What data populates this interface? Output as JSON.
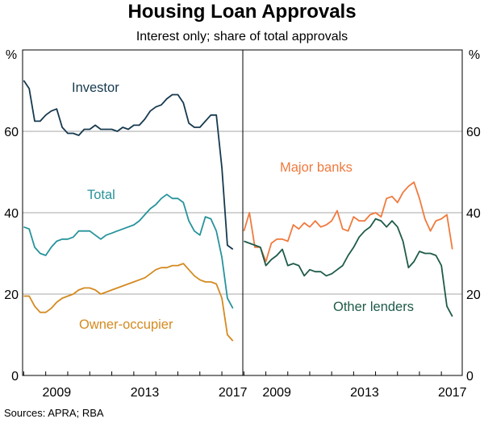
{
  "chart_data": {
    "type": "line",
    "title": "Housing Loan Approvals",
    "subtitle": "Interest only; share of total approvals",
    "source": "Sources: APRA; RBA",
    "y_unit": "%",
    "ylim": [
      0,
      80
    ],
    "yticks": [
      0,
      20,
      40,
      60
    ],
    "xticks": [
      2009,
      2013,
      2017
    ],
    "grid": true,
    "colors": {
      "investor": "#16394f",
      "total": "#27939b",
      "owner_occupier": "#d48a20",
      "major_banks": "#f07a3e",
      "other_lenders": "#1e5b4a"
    },
    "panels": [
      {
        "xlim": [
          2007.95,
          2017.95
        ],
        "series": [
          {
            "name": "Investor",
            "key": "investor",
            "x": [
              2008.0,
              2008.25,
              2008.5,
              2008.75,
              2009.0,
              2009.25,
              2009.5,
              2009.75,
              2010.0,
              2010.25,
              2010.5,
              2010.75,
              2011.0,
              2011.25,
              2011.5,
              2011.75,
              2012.0,
              2012.25,
              2012.5,
              2012.75,
              2013.0,
              2013.25,
              2013.5,
              2013.75,
              2014.0,
              2014.25,
              2014.5,
              2014.75,
              2015.0,
              2015.25,
              2015.5,
              2015.75,
              2016.0,
              2016.25,
              2016.5,
              2016.75,
              2017.0,
              2017.25,
              2017.5
            ],
            "y": [
              72.5,
              70.5,
              62.5,
              62.5,
              64,
              65,
              65.5,
              61,
              59.5,
              59.5,
              59,
              60.5,
              60.5,
              61.5,
              60.5,
              60.5,
              60.5,
              60,
              61,
              60.5,
              61.5,
              61.5,
              63,
              65,
              66,
              66.5,
              68,
              69,
              69,
              67,
              62,
              61,
              61,
              62.5,
              64,
              64,
              51,
              32,
              31
            ]
          },
          {
            "name": "Total",
            "key": "total",
            "x": [
              2008.0,
              2008.25,
              2008.5,
              2008.75,
              2009.0,
              2009.25,
              2009.5,
              2009.75,
              2010.0,
              2010.25,
              2010.5,
              2010.75,
              2011.0,
              2011.25,
              2011.5,
              2011.75,
              2012.0,
              2012.25,
              2012.5,
              2012.75,
              2013.0,
              2013.25,
              2013.5,
              2013.75,
              2014.0,
              2014.25,
              2014.5,
              2014.75,
              2015.0,
              2015.25,
              2015.5,
              2015.75,
              2016.0,
              2016.25,
              2016.5,
              2016.75,
              2017.0,
              2017.25,
              2017.5
            ],
            "y": [
              36.5,
              36,
              31.5,
              30,
              29.5,
              31.5,
              33,
              33.5,
              33.5,
              34,
              35.5,
              35.5,
              35.5,
              34.5,
              33.5,
              34.5,
              35,
              35.5,
              36,
              36.5,
              37,
              38,
              39.5,
              41,
              42,
              43.5,
              44.5,
              43.5,
              43.5,
              42.5,
              38,
              35.5,
              34.5,
              39,
              38.5,
              35.5,
              29,
              19,
              16.5
            ]
          },
          {
            "name": "Owner-occupier",
            "key": "owner_occupier",
            "x": [
              2008.0,
              2008.25,
              2008.5,
              2008.75,
              2009.0,
              2009.25,
              2009.5,
              2009.75,
              2010.0,
              2010.25,
              2010.5,
              2010.75,
              2011.0,
              2011.25,
              2011.5,
              2011.75,
              2012.0,
              2012.25,
              2012.5,
              2012.75,
              2013.0,
              2013.25,
              2013.5,
              2013.75,
              2014.0,
              2014.25,
              2014.5,
              2014.75,
              2015.0,
              2015.25,
              2015.5,
              2015.75,
              2016.0,
              2016.25,
              2016.5,
              2016.75,
              2017.0,
              2017.25,
              2017.5
            ],
            "y": [
              19.5,
              19.5,
              17,
              15.5,
              15.5,
              16.5,
              18,
              19,
              19.5,
              20,
              21,
              21.5,
              21.5,
              21,
              20,
              20.5,
              21,
              21.5,
              22,
              22.5,
              23,
              23.5,
              24,
              25,
              26,
              26.5,
              26.5,
              27,
              27,
              27.5,
              26,
              24.5,
              23.5,
              23,
              23,
              22.5,
              19,
              10,
              8.5
            ]
          }
        ]
      },
      {
        "xlim": [
          2007.95,
          2017.95
        ],
        "series": [
          {
            "name": "Major banks",
            "key": "major_banks",
            "x": [
              2008.0,
              2008.25,
              2008.5,
              2008.75,
              2009.0,
              2009.25,
              2009.5,
              2009.75,
              2010.0,
              2010.25,
              2010.5,
              2010.75,
              2011.0,
              2011.25,
              2011.5,
              2011.75,
              2012.0,
              2012.25,
              2012.5,
              2012.75,
              2013.0,
              2013.25,
              2013.5,
              2013.75,
              2014.0,
              2014.25,
              2014.5,
              2014.75,
              2015.0,
              2015.25,
              2015.5,
              2015.75,
              2016.0,
              2016.25,
              2016.5,
              2016.75,
              2017.0,
              2017.25,
              2017.5
            ],
            "y": [
              35.5,
              40,
              31.5,
              31.5,
              28,
              32.5,
              33.5,
              33.5,
              33,
              37,
              36,
              37.5,
              36.5,
              38,
              36.5,
              37,
              38,
              40.5,
              36,
              35.5,
              39,
              38,
              38,
              39.5,
              40,
              39,
              43.5,
              44,
              42.5,
              45,
              46.5,
              47.5,
              43.5,
              38.5,
              35.5,
              38,
              38.5,
              39.5,
              31
            ]
          },
          {
            "name": "Other lenders",
            "key": "other_lenders",
            "x": [
              2008.0,
              2008.25,
              2008.5,
              2008.75,
              2009.0,
              2009.25,
              2009.5,
              2009.75,
              2010.0,
              2010.25,
              2010.5,
              2010.75,
              2011.0,
              2011.25,
              2011.5,
              2011.75,
              2012.0,
              2012.25,
              2012.5,
              2012.75,
              2013.0,
              2013.25,
              2013.5,
              2013.75,
              2014.0,
              2014.25,
              2014.5,
              2014.75,
              2015.0,
              2015.25,
              2015.5,
              2015.75,
              2016.0,
              2016.25,
              2016.5,
              2016.75,
              2017.0,
              2017.25,
              2017.5
            ],
            "y": [
              33,
              32.5,
              32,
              31.5,
              27,
              28.5,
              29.5,
              31,
              27,
              27.5,
              27,
              24.5,
              26,
              25.5,
              25.5,
              24.5,
              25,
              26,
              27,
              29.5,
              31.5,
              34,
              35.5,
              36.5,
              38.5,
              38,
              36.5,
              38,
              36.5,
              33,
              26.5,
              28,
              30.5,
              30,
              30,
              29.5,
              27,
              17,
              14.5
            ]
          }
        ]
      }
    ],
    "labels": {
      "investor": "Investor",
      "total": "Total",
      "owner_occupier": "Owner-occupier",
      "major_banks": "Major banks",
      "other_lenders": "Other lenders"
    }
  }
}
